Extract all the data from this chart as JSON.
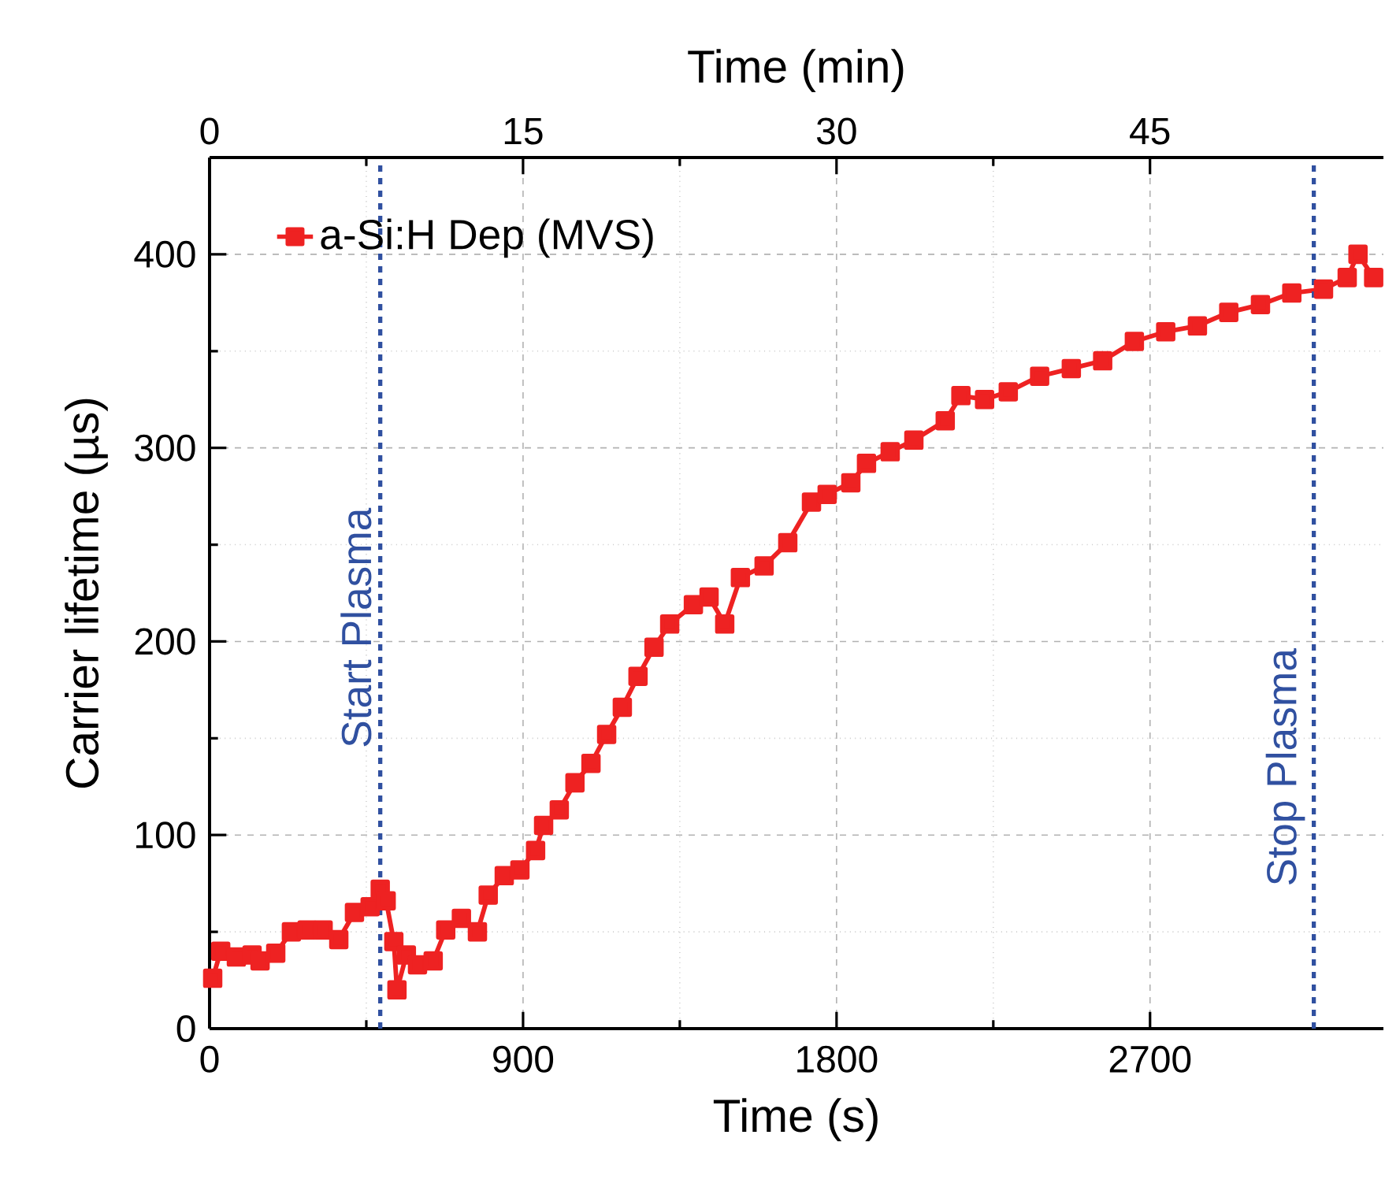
{
  "chart_data": {
    "type": "line",
    "xlabel": "Time (s)",
    "ylabel": "Carrier lifetime (µs)",
    "x2label": "Time (min)",
    "xlim": [
      0,
      3370
    ],
    "xticks": [
      0,
      900,
      1800,
      2700
    ],
    "ylim": [
      0,
      450
    ],
    "yticks": [
      0,
      100,
      200,
      300,
      400
    ],
    "x2lim": [
      0,
      56.17
    ],
    "x2ticks": [
      0,
      15,
      30,
      45
    ],
    "grid": true,
    "legend": "top left",
    "marker": "square",
    "line_style": "solid",
    "ref_lines": [
      {
        "axis": "x",
        "value": 490,
        "label": "Start Plasma",
        "color": "#3050a0",
        "line_style": "dashed"
      },
      {
        "axis": "x",
        "value": 3170,
        "label": "Stop Plasma",
        "color": "#3050a0",
        "line_style": "dashed"
      }
    ],
    "series": [
      {
        "name": "a-Si:H Dep (MVS)",
        "color": "#ee2222",
        "x": [
          9,
          32,
          77,
          122,
          145,
          190,
          235,
          280,
          326,
          371,
          416,
          461,
          490,
          507,
          529,
          538,
          565,
          597,
          642,
          678,
          723,
          769,
          800,
          846,
          891,
          936,
          959,
          1004,
          1049,
          1095,
          1140,
          1185,
          1230,
          1276,
          1321,
          1389,
          1434,
          1479,
          1524,
          1592,
          1660,
          1728,
          1773,
          1841,
          1886,
          1954,
          2022,
          2112,
          2157,
          2225,
          2293,
          2383,
          2474,
          2564,
          2655,
          2745,
          2836,
          2926,
          3017,
          3107,
          3198,
          3266,
          3297,
          3342
        ],
        "values": [
          26,
          40,
          37,
          38,
          35,
          39,
          50,
          51,
          51,
          46,
          60,
          63,
          72,
          66,
          45,
          20,
          38,
          33,
          35,
          51,
          57,
          50,
          69,
          79,
          82,
          92,
          105,
          113,
          127,
          137,
          152,
          166,
          182,
          197,
          209,
          219,
          223,
          209,
          233,
          239,
          251,
          272,
          276,
          282,
          292,
          298,
          304,
          314,
          327,
          325,
          329,
          337,
          341,
          345,
          355,
          360,
          363,
          370,
          374,
          380,
          382,
          388,
          400,
          388
        ]
      }
    ]
  }
}
